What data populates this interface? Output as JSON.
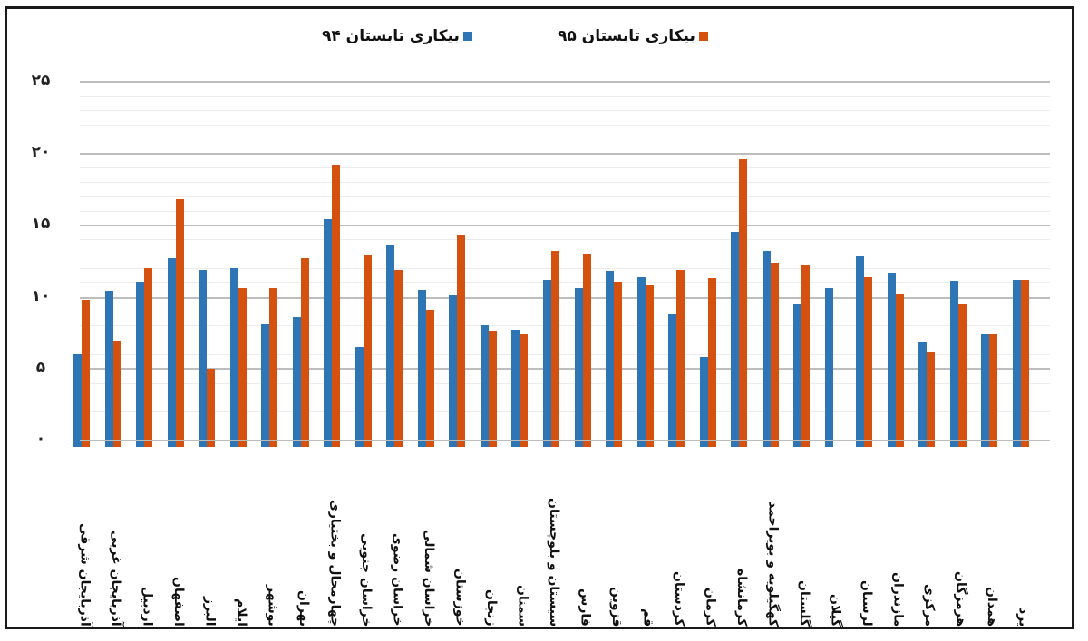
{
  "legend": {
    "series94_label": "بیکاری تابستان ۹۴",
    "series95_label": "بیکاری تابستان ۹۵"
  },
  "colors": {
    "series94": "#2e75b6",
    "series95": "#d4510f",
    "frame": "#1a1a1a",
    "grid_major": "#bdbdbd",
    "grid_minor": "#ececec"
  },
  "y_axis": {
    "ticks": [
      {
        "value": 0,
        "label": "۰"
      },
      {
        "value": 5,
        "label": "۵"
      },
      {
        "value": 10,
        "label": "۱۰"
      },
      {
        "value": 15,
        "label": "۱۵"
      },
      {
        "value": 20,
        "label": "۲۰"
      },
      {
        "value": 25,
        "label": "۲۵"
      }
    ]
  },
  "chart_data": {
    "type": "bar",
    "title": "",
    "xlabel": "",
    "ylabel": "",
    "ylim": [
      0,
      25
    ],
    "grid": true,
    "legend_position": "top",
    "categories": [
      "آذربایجان شرقی",
      "آذربایجان غربی",
      "اردبیل",
      "اصفهان",
      "البرز",
      "ایلام",
      "بوشهر",
      "تهران",
      "چهارمحال و بختیاری",
      "خراسان جنوبی",
      "خراسان رضوی",
      "خراسان شمالی",
      "خوزستان",
      "زنجان",
      "سمنان",
      "سیستان و بلوچستان",
      "فارس",
      "قزوین",
      "قم",
      "کردستان",
      "کرمان",
      "کرمانشاه",
      "کهگیلویه و بویراحمد",
      "گلستان",
      "گیلان",
      "لرستان",
      "مازندران",
      "مرکزی",
      "هرمزگان",
      "همدان",
      "یزد"
    ],
    "series": [
      {
        "name": "بیکاری تابستان ۹۴",
        "values": [
          6.5,
          10.9,
          11.5,
          13.2,
          12.4,
          12.5,
          8.6,
          9.1,
          15.9,
          7.0,
          14.1,
          11.0,
          10.6,
          8.5,
          8.2,
          11.7,
          11.1,
          12.3,
          11.9,
          9.3,
          6.3,
          15.0,
          13.7,
          10.0,
          11.1,
          13.3,
          12.1,
          7.3,
          11.6,
          7.9,
          11.7
        ]
      },
      {
        "name": "بیکاری تابستان ۹۵",
        "values": [
          10.3,
          7.4,
          12.5,
          17.3,
          5.4,
          11.1,
          11.1,
          13.2,
          19.7,
          13.4,
          12.4,
          9.6,
          14.8,
          8.1,
          7.9,
          13.7,
          13.5,
          11.5,
          11.3,
          12.4,
          11.8,
          20.1,
          12.8,
          12.7,
          null,
          11.9,
          10.7,
          6.6,
          10.0,
          7.9,
          11.7
        ]
      }
    ]
  }
}
